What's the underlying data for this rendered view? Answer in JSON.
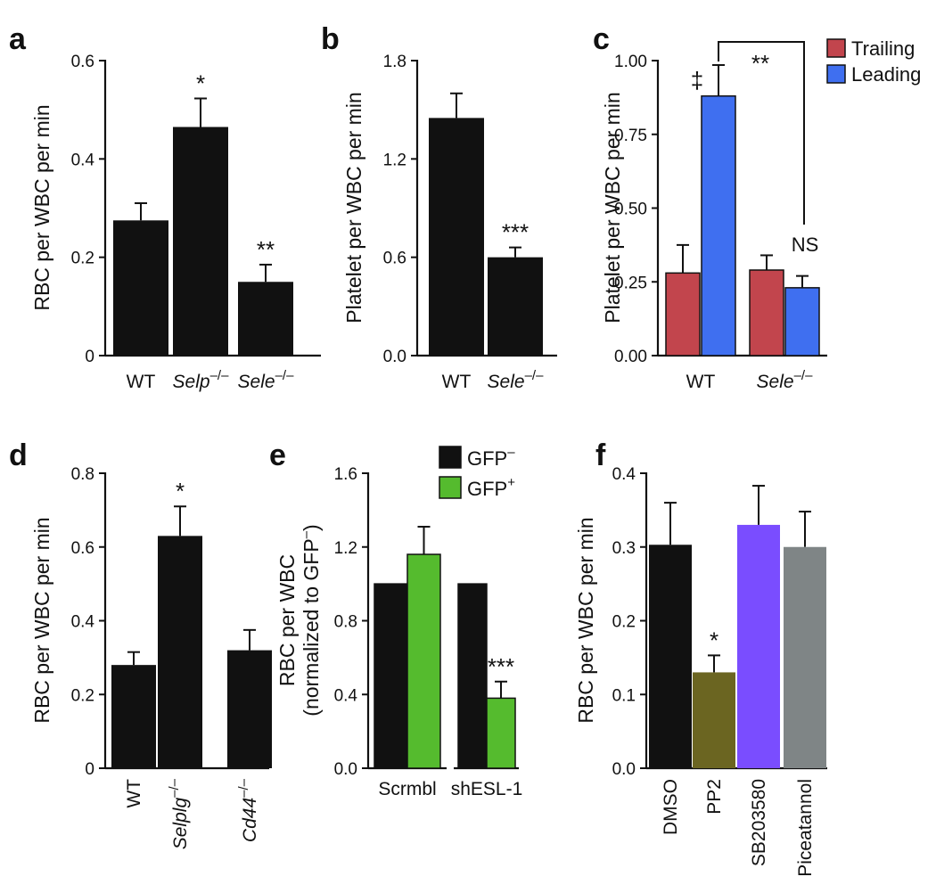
{
  "figure": {
    "panels": [
      "a",
      "b",
      "c",
      "d",
      "e",
      "f"
    ]
  },
  "colors": {
    "black": "#111111",
    "trailing": "#c2454d",
    "leading": "#3f6ff0",
    "gfp_pos": "#55bb2e",
    "pp2": "#6b6521",
    "sb203580": "#7a4dff",
    "piceatannol": "#7f8586"
  },
  "chart_data": [
    {
      "panel": "a",
      "type": "bar",
      "ylabel": "RBC per WBC per min",
      "ylim": [
        0,
        0.6
      ],
      "yticks": [
        "0",
        "0.2",
        "0.4",
        "0.6"
      ],
      "categories": [
        {
          "base": "WT",
          "sup": ""
        },
        {
          "base": "Selp",
          "sup": "–/–"
        },
        {
          "base": "Sele",
          "sup": "–/–"
        }
      ],
      "values": [
        0.275,
        0.465,
        0.15
      ],
      "errors": [
        0.035,
        0.058,
        0.035
      ],
      "annotations": [
        "",
        "*",
        "**"
      ]
    },
    {
      "panel": "b",
      "type": "bar",
      "ylabel": "Platelet per WBC per min",
      "ylim": [
        0,
        1.8
      ],
      "yticks": [
        "0.0",
        "0.6",
        "1.2",
        "1.8"
      ],
      "categories": [
        {
          "base": "WT",
          "sup": ""
        },
        {
          "base": "Sele",
          "sup": "–/–"
        }
      ],
      "values": [
        1.45,
        0.6
      ],
      "errors": [
        0.15,
        0.06
      ],
      "annotations": [
        "",
        "***"
      ]
    },
    {
      "panel": "c",
      "type": "bar",
      "ylabel": "Platelet per WBC per min",
      "ylim": [
        0,
        1.0
      ],
      "yticks": [
        "0.00",
        "0.25",
        "0.50",
        "0.75",
        "1.00"
      ],
      "categories": [
        {
          "base": "WT",
          "sup": ""
        },
        {
          "base": "Sele",
          "sup": "–/–"
        }
      ],
      "series": [
        {
          "name": "Trailing",
          "values": [
            0.28,
            0.29
          ],
          "errors": [
            0.095,
            0.05
          ]
        },
        {
          "name": "Leading",
          "values": [
            0.88,
            0.23
          ],
          "errors": [
            0.105,
            0.04
          ]
        }
      ],
      "legend": [
        "Trailing",
        "Leading"
      ],
      "annotations": {
        "wt_leading": "‡",
        "bracket": "**",
        "sele_leading": "NS"
      }
    },
    {
      "panel": "d",
      "type": "bar",
      "ylabel": "RBC per WBC per min",
      "ylim": [
        0,
        0.8
      ],
      "yticks": [
        "0",
        "0.2",
        "0.4",
        "0.6",
        "0.8"
      ],
      "categories": [
        {
          "base": "WT",
          "sup": ""
        },
        {
          "base": "Selplg",
          "sup": "–/–"
        },
        {
          "base": "Cd44",
          "sup": "–/–"
        }
      ],
      "values": [
        0.28,
        0.63,
        0.32
      ],
      "errors": [
        0.035,
        0.08,
        0.055
      ],
      "annotations": [
        "",
        "*",
        ""
      ]
    },
    {
      "panel": "e",
      "type": "bar",
      "ylabel_line1": "RBC per WBC",
      "ylabel_line2": "(normalized to GFP",
      "ylabel_line2_sup": "–",
      "ylabel_line2_end": ")",
      "ylim": [
        0,
        1.6
      ],
      "yticks": [
        "0.0",
        "0.4",
        "0.8",
        "1.2",
        "1.6"
      ],
      "categories": [
        "Scrmbl",
        "shESL-1"
      ],
      "series": [
        {
          "name": "GFP–",
          "values": [
            1.0,
            1.0
          ],
          "errors": [
            0,
            0
          ]
        },
        {
          "name": "GFP+",
          "values": [
            1.16,
            0.38
          ],
          "errors": [
            0.15,
            0.09
          ]
        }
      ],
      "legend": [
        {
          "base": "GFP",
          "sup": "–"
        },
        {
          "base": "GFP",
          "sup": "+"
        }
      ],
      "annotations": [
        "",
        "***"
      ]
    },
    {
      "panel": "f",
      "type": "bar",
      "ylabel": "RBC per WBC per min",
      "ylim": [
        0,
        0.4
      ],
      "yticks": [
        "0.0",
        "0.1",
        "0.2",
        "0.3",
        "0.4"
      ],
      "categories": [
        "DMSO",
        "PP2",
        "SB203580",
        "Piceatannol"
      ],
      "values": [
        0.303,
        0.13,
        0.33,
        0.3
      ],
      "errors": [
        0.057,
        0.023,
        0.053,
        0.048
      ],
      "annotations": [
        "",
        "*",
        "",
        ""
      ]
    }
  ]
}
